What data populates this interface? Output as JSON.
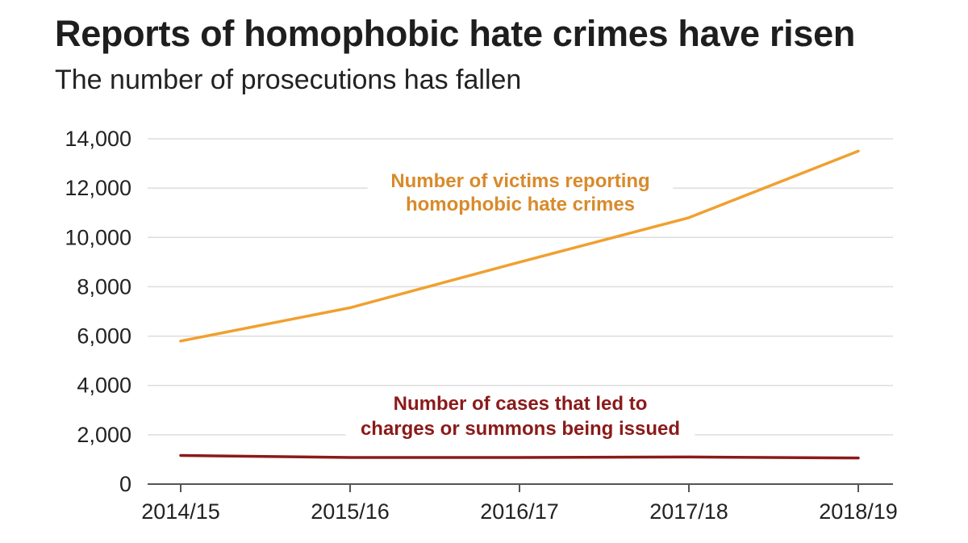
{
  "chart_data": {
    "type": "line",
    "title": "Reports of homophobic hate crimes have risen",
    "subtitle": "The number of prosecutions has fallen",
    "categories": [
      "2014/15",
      "2015/16",
      "2016/17",
      "2017/18",
      "2018/19"
    ],
    "ylim": [
      0,
      14000
    ],
    "yticks": [
      0,
      2000,
      4000,
      6000,
      8000,
      10000,
      12000,
      14000
    ],
    "ytick_labels": [
      "0",
      "2,000",
      "4,000",
      "6,000",
      "8,000",
      "10,000",
      "12,000",
      "14,000"
    ],
    "grid": true,
    "series": [
      {
        "name": "Number of victims reporting homophobic hate crimes",
        "label_lines": [
          "Number of victims reporting",
          "homophobic hate crimes"
        ],
        "color": "#f0a030",
        "label_color": "#d98a2b",
        "values": [
          5800,
          7150,
          9000,
          10800,
          13500
        ]
      },
      {
        "name": "Number of cases that led to charges or summons being issued",
        "label_lines": [
          "Number of cases that led to",
          "charges or summons being issued"
        ],
        "color": "#8b1a1a",
        "label_color": "#8b1a1a",
        "values": [
          1160,
          1080,
          1080,
          1100,
          1060
        ]
      }
    ]
  }
}
